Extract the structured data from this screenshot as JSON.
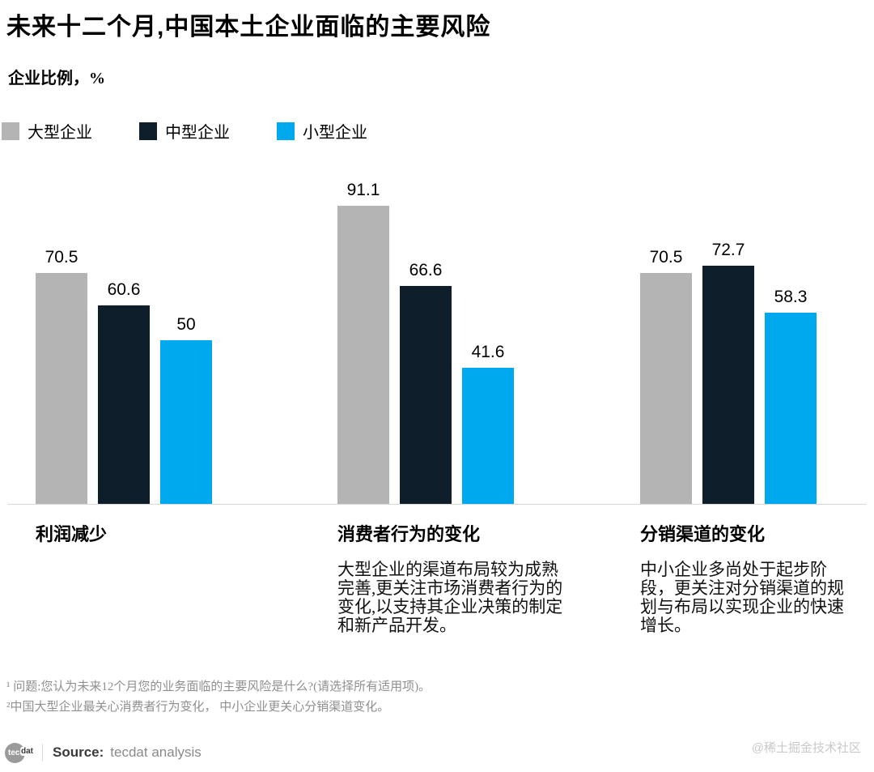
{
  "header": {
    "title": "未来十二个月,中国本土企业面临的主要风险",
    "subtitle": "企业比例，%"
  },
  "chart_data": {
    "type": "bar",
    "title": "未来十二个月,中国本土企业面临的主要风险",
    "ylabel": "企业比例，%",
    "ylim": [
      0,
      100
    ],
    "grid": false,
    "legend_position": "top-left",
    "value_labels": true,
    "categories": [
      "利润减少",
      "消费者行为的变化",
      "分销渠道的变化"
    ],
    "series": [
      {
        "name": "大型企业",
        "color": "#b4b4b4",
        "values": [
          70.5,
          91.1,
          70.5
        ]
      },
      {
        "name": "中型企业",
        "color": "#0e1f2b",
        "values": [
          60.6,
          66.6,
          72.7
        ]
      },
      {
        "name": "小型企业",
        "color": "#00a9ee",
        "values": [
          50,
          41.6,
          58.3
        ]
      }
    ],
    "descriptions": [
      "",
      "大型企业的渠道布局较为成熟\n完善,更关注市场消费者行为的\n变化,以支持其企业决策的制定\n和新产品开发。",
      "中小企业多尚处于起步阶\n段，更关注对分销渠道的规\n划与布局以实现企业的快速\n增长。"
    ]
  },
  "footnotes": [
    "¹ 问题:您认为未来12个月您的业务面临的主要风险是什么?(请选择所有适用项)。",
    "²中国大型企业最关心消费者行为变化， 中小企业更关心分销渠道变化。"
  ],
  "source": {
    "logo_circle_text": "tec",
    "logo_rest_text": "dat",
    "label": "Source:",
    "text": "tecdat analysis"
  },
  "watermark": "@稀土掘金技术社区"
}
